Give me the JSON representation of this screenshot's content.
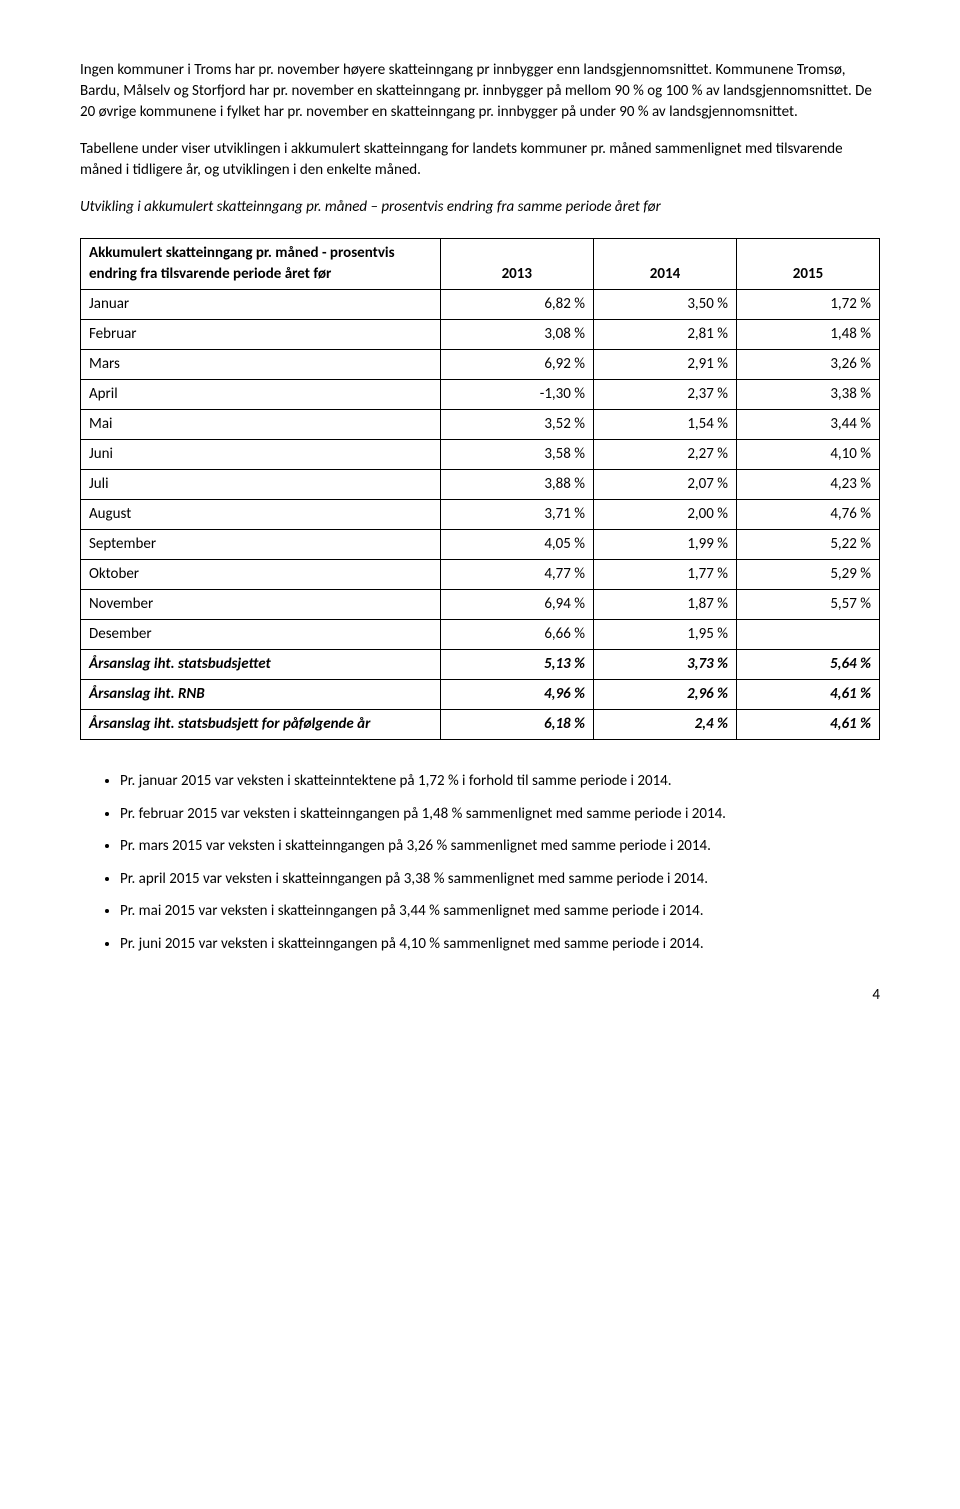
{
  "para1": "Ingen kommuner i Troms har pr. november høyere skatteinngang pr innbygger enn landsgjennomsnittet. Kommunene Tromsø, Bardu, Målselv og Storfjord har pr. november en skatteinngang pr. innbygger på mellom 90 % og 100 % av landsgjennomsnittet. De 20 øvrige kommunene i fylket har pr. november en skatteinngang pr. innbygger på under 90 % av landsgjennomsnittet.",
  "para2": "Tabellene under viser utviklingen i akkumulert skatteinngang for landets kommuner pr. måned sammenlignet med tilsvarende måned i tidligere år, og utviklingen i den enkelte måned.",
  "heading": "Utvikling i akkumulert skatteinngang pr. måned – prosentvis endring fra samme periode året før",
  "table": {
    "header_label": "Akkumulert skatteinngang pr. måned - prosentvis endring fra tilsvarende periode året før",
    "years": [
      "2013",
      "2014",
      "2015"
    ],
    "rows": [
      {
        "label": "Januar",
        "v": [
          "6,82 %",
          "3,50 %",
          "1,72 %"
        ]
      },
      {
        "label": "Februar",
        "v": [
          "3,08 %",
          "2,81 %",
          "1,48 %"
        ]
      },
      {
        "label": "Mars",
        "v": [
          "6,92 %",
          "2,91 %",
          "3,26 %"
        ]
      },
      {
        "label": "April",
        "v": [
          "-1,30 %",
          "2,37 %",
          "3,38 %"
        ]
      },
      {
        "label": "Mai",
        "v": [
          "3,52 %",
          "1,54 %",
          "3,44 %"
        ]
      },
      {
        "label": "Juni",
        "v": [
          "3,58 %",
          "2,27 %",
          "4,10 %"
        ]
      },
      {
        "label": "Juli",
        "v": [
          "3,88 %",
          "2,07 %",
          "4,23 %"
        ]
      },
      {
        "label": "August",
        "v": [
          "3,71 %",
          "2,00 %",
          "4,76 %"
        ]
      },
      {
        "label": "September",
        "v": [
          "4,05 %",
          "1,99 %",
          "5,22 %"
        ]
      },
      {
        "label": "Oktober",
        "v": [
          "4,77 %",
          "1,77 %",
          "5,29 %"
        ]
      },
      {
        "label": "November",
        "v": [
          "6,94 %",
          "1,87 %",
          "5,57 %"
        ]
      },
      {
        "label": "Desember",
        "v": [
          "6,66 %",
          "1,95 %",
          ""
        ]
      }
    ],
    "boldrows": [
      {
        "label": "Årsanslag iht. statsbudsjettet",
        "v": [
          "5,13 %",
          "3,73 %",
          "5,64 %"
        ]
      },
      {
        "label": "Årsanslag iht. RNB",
        "v": [
          "4,96 %",
          "2,96 %",
          "4,61 %"
        ]
      },
      {
        "label": "Årsanslag iht. statsbudsjett for påfølgende år",
        "v": [
          "6,18 %",
          "2,4 %",
          "4,61 %"
        ]
      }
    ]
  },
  "bullets": [
    "Pr. januar 2015 var veksten i skatteinntektene på 1,72 % i forhold til samme periode i 2014.",
    "Pr. februar 2015 var veksten i skatteinngangen på 1,48 % sammenlignet med samme periode i 2014.",
    "Pr. mars 2015 var veksten i skatteinngangen på 3,26 % sammenlignet med samme periode i 2014.",
    "Pr. april 2015 var veksten i skatteinngangen på 3,38 % sammenlignet med samme periode i 2014.",
    "Pr. mai 2015 var veksten i skatteinngangen på 3,44 % sammenlignet med samme periode i 2014.",
    "Pr. juni 2015 var veksten i skatteinngangen på 4,10 % sammenlignet med samme periode i 2014."
  ],
  "page_number": "4"
}
